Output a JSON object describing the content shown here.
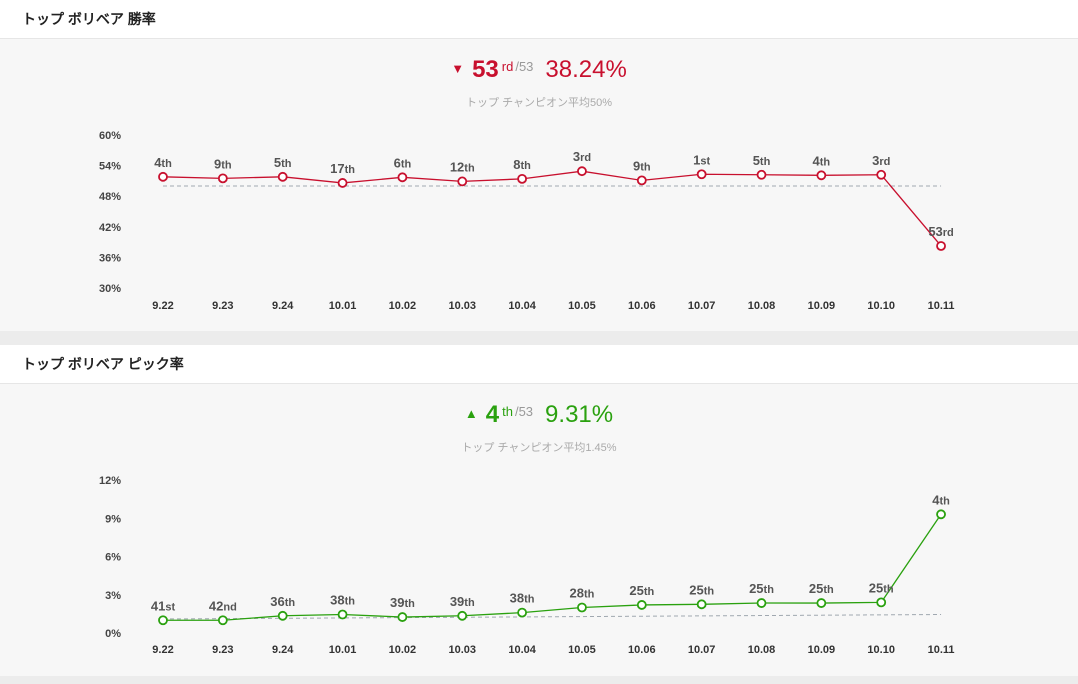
{
  "colors": {
    "red": "#c8102e",
    "green": "#2aa10f",
    "avg_line": "#a0a8b0"
  },
  "panels": [
    {
      "title": "トップ ボリベア 勝率",
      "summary": {
        "direction": "▼",
        "rank": "53",
        "suffix": "rd",
        "total": "/53",
        "value": "38.24%"
      },
      "avg_note": "トップ チャンピオン平均50%",
      "color_key": "red"
    },
    {
      "title": "トップ ボリベア ピック率",
      "summary": {
        "direction": "▲",
        "rank": "4",
        "suffix": "th",
        "total": "/53",
        "value": "9.31%"
      },
      "avg_note": "トップ チャンピオン平均1.45%",
      "color_key": "green"
    }
  ],
  "chart_data": [
    {
      "type": "line",
      "x": [
        "9.22",
        "9.23",
        "9.24",
        "10.01",
        "10.02",
        "10.03",
        "10.04",
        "10.05",
        "10.06",
        "10.07",
        "10.08",
        "10.09",
        "10.10",
        "10.11"
      ],
      "yticks": [
        "60%",
        "54%",
        "48%",
        "42%",
        "36%",
        "30%"
      ],
      "ylim": [
        30,
        60
      ],
      "values": [
        51.8,
        51.5,
        51.8,
        50.6,
        51.7,
        50.9,
        51.4,
        52.9,
        51.1,
        52.3,
        52.2,
        52.1,
        52.2,
        38.24
      ],
      "rank_labels": [
        {
          "num": "4",
          "suf": "th"
        },
        {
          "num": "9",
          "suf": "th"
        },
        {
          "num": "5",
          "suf": "th"
        },
        {
          "num": "17",
          "suf": "th"
        },
        {
          "num": "6",
          "suf": "th"
        },
        {
          "num": "12",
          "suf": "th"
        },
        {
          "num": "8",
          "suf": "th"
        },
        {
          "num": "3",
          "suf": "rd"
        },
        {
          "num": "9",
          "suf": "th"
        },
        {
          "num": "1",
          "suf": "st"
        },
        {
          "num": "5",
          "suf": "th"
        },
        {
          "num": "4",
          "suf": "th"
        },
        {
          "num": "3",
          "suf": "rd"
        },
        {
          "num": "53",
          "suf": "rd"
        }
      ],
      "average": 50,
      "color": "#c8102e"
    },
    {
      "type": "line",
      "x": [
        "9.22",
        "9.23",
        "9.24",
        "10.01",
        "10.02",
        "10.03",
        "10.04",
        "10.05",
        "10.06",
        "10.07",
        "10.08",
        "10.09",
        "10.10",
        "10.11"
      ],
      "yticks": [
        "12%",
        "9%",
        "6%",
        "3%",
        "0%"
      ],
      "ylim": [
        0,
        12
      ],
      "values": [
        1.0,
        1.0,
        1.35,
        1.45,
        1.25,
        1.35,
        1.6,
        2.0,
        2.2,
        2.25,
        2.35,
        2.35,
        2.4,
        9.31
      ],
      "rank_labels": [
        {
          "num": "41",
          "suf": "st"
        },
        {
          "num": "42",
          "suf": "nd"
        },
        {
          "num": "36",
          "suf": "th"
        },
        {
          "num": "38",
          "suf": "th"
        },
        {
          "num": "39",
          "suf": "th"
        },
        {
          "num": "39",
          "suf": "th"
        },
        {
          "num": "38",
          "suf": "th"
        },
        {
          "num": "28",
          "suf": "th"
        },
        {
          "num": "25",
          "suf": "th"
        },
        {
          "num": "25",
          "suf": "th"
        },
        {
          "num": "25",
          "suf": "th"
        },
        {
          "num": "25",
          "suf": "th"
        },
        {
          "num": "25",
          "suf": "th"
        },
        {
          "num": "4",
          "suf": "th"
        }
      ],
      "average_start": 1.1,
      "average_end": 1.45,
      "color": "#2aa10f"
    }
  ]
}
